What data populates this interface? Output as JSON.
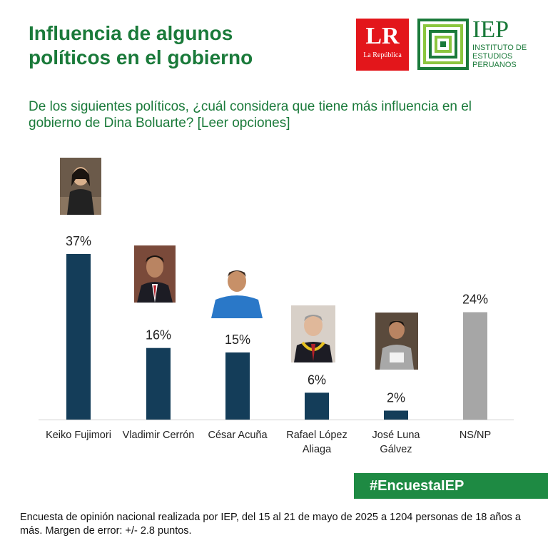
{
  "header": {
    "title_line1": "Influencia de algunos",
    "title_line2": "políticos en el gobierno"
  },
  "logos": {
    "lr_big": "LR",
    "lr_small": "La República",
    "iep_big": "IEP",
    "iep_line1": "INSTITUTO DE",
    "iep_line2": "ESTUDIOS",
    "iep_line3": "PERUANOS"
  },
  "question": "De los siguientes políticos, ¿cuál considera que tiene más influencia en el gobierno de Dina Boluarte? [Leer opciones]",
  "hashtag": "#EncuestaIEP",
  "footnote": "Encuesta de opinión nacional realizada por IEP, del 15 al 21 de mayo de 2025 a 1204 personas de 18 años a más. Margen de error: +/- 2.8 puntos.",
  "colors": {
    "accent": "#1a7a3a",
    "bar_main": "#143d59",
    "bar_other": "#a6a6a6",
    "lr_red": "#e3161b",
    "hashtag_bg": "#1e8a43"
  },
  "chart_data": {
    "type": "bar",
    "categories": [
      [
        "Keiko Fujimori"
      ],
      [
        "Vladimir Cerrón"
      ],
      [
        "César Acuña"
      ],
      [
        "Rafael López",
        "Aliaga"
      ],
      [
        "José Luna",
        "Gálvez"
      ],
      [
        "NS/NP"
      ]
    ],
    "values": [
      37,
      16,
      15,
      6,
      2,
      24
    ],
    "value_labels": [
      "37%",
      "16%",
      "15%",
      "6%",
      "2%",
      "24%"
    ],
    "unit": "%",
    "ylim": [
      0,
      37
    ],
    "grid": false
  }
}
